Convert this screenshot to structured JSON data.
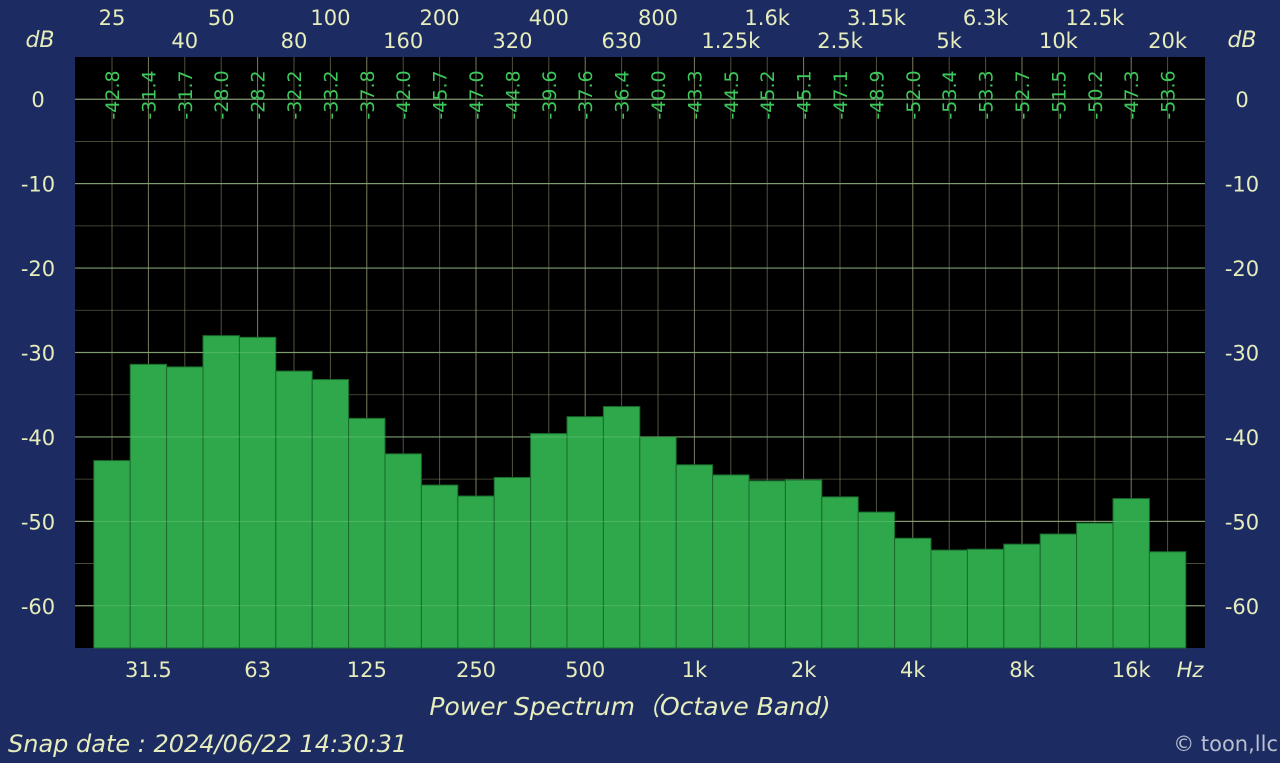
{
  "chart_data": {
    "type": "bar",
    "title": "Power Spectrum（Octave Band)",
    "xlabel": "Hz",
    "ylabel": "dB",
    "ylim": [
      -65,
      5
    ],
    "yticks": [
      0,
      -10,
      -20,
      -30,
      -40,
      -50,
      -60
    ],
    "grid": true,
    "categories": [
      "25",
      "31.5",
      "40",
      "50",
      "63",
      "80",
      "100",
      "125",
      "160",
      "200",
      "250",
      "320",
      "400",
      "500",
      "630",
      "800",
      "1k",
      "1.25k",
      "1.6k",
      "2k",
      "2.5k",
      "3.15k",
      "4k",
      "5k",
      "6.3k",
      "8k",
      "10k",
      "12.5k",
      "16k",
      "20k"
    ],
    "values": [
      -42.8,
      -31.4,
      -31.7,
      -28.0,
      -28.2,
      -32.2,
      -33.2,
      -37.8,
      -42.0,
      -45.7,
      -47.0,
      -44.8,
      -39.6,
      -37.6,
      -36.4,
      -40.0,
      -43.3,
      -44.5,
      -45.2,
      -45.1,
      -47.1,
      -48.9,
      -52.0,
      -53.4,
      -53.3,
      -52.7,
      -51.5,
      -50.2,
      -47.3,
      -53.6
    ],
    "data_labels": [
      "-42.8",
      "-31.4",
      "-31.7",
      "-28.0",
      "-28.2",
      "-32.2",
      "-33.2",
      "-37.8",
      "-42.0",
      "-45.7",
      "-47.0",
      "-44.8",
      "-39.6",
      "-37.6",
      "-36.4",
      "-40.0",
      "-43.3",
      "-44.5",
      "-45.2",
      "-45.1",
      "-47.1",
      "-48.9",
      "-52.0",
      "-53.4",
      "-53.3",
      "-52.7",
      "-51.5",
      "-50.2",
      "-47.3",
      "-53.6"
    ],
    "top_tick_labels_row1": [
      {
        "band": 0,
        "text": "25"
      },
      {
        "band": 3,
        "text": "50"
      },
      {
        "band": 6,
        "text": "100"
      },
      {
        "band": 9,
        "text": "200"
      },
      {
        "band": 12,
        "text": "400"
      },
      {
        "band": 15,
        "text": "800"
      },
      {
        "band": 18,
        "text": "1.6k"
      },
      {
        "band": 21,
        "text": "3.15k"
      },
      {
        "band": 24,
        "text": "6.3k"
      },
      {
        "band": 27,
        "text": "12.5k"
      }
    ],
    "top_tick_labels_row2": [
      {
        "band": 2,
        "text": "40"
      },
      {
        "band": 5,
        "text": "80"
      },
      {
        "band": 8,
        "text": "160"
      },
      {
        "band": 11,
        "text": "320"
      },
      {
        "band": 14,
        "text": "630"
      },
      {
        "band": 17,
        "text": "1.25k"
      },
      {
        "band": 20,
        "text": "2.5k"
      },
      {
        "band": 23,
        "text": "5k"
      },
      {
        "band": 26,
        "text": "10k"
      },
      {
        "band": 29,
        "text": "20k"
      }
    ],
    "bottom_tick_labels": [
      {
        "band": 1,
        "text": "31.5"
      },
      {
        "band": 4,
        "text": "63"
      },
      {
        "band": 7,
        "text": "125"
      },
      {
        "band": 10,
        "text": "250"
      },
      {
        "band": 13,
        "text": "500"
      },
      {
        "band": 16,
        "text": "1k"
      },
      {
        "band": 19,
        "text": "2k"
      },
      {
        "band": 22,
        "text": "4k"
      },
      {
        "band": 25,
        "text": "8k"
      },
      {
        "band": 28,
        "text": "16k"
      }
    ],
    "colors": {
      "background": "#1c2c62",
      "plot": "#000000",
      "bar": "#2ea84a",
      "bar_edge": "#1a6a2c",
      "data_label": "#3cc85a",
      "text": "#e6ecbc",
      "grid": "#8a8a6a"
    }
  },
  "footer": {
    "snap_date": "Snap date : 2024/06/22 14:30:31",
    "copyright": "© toon,llc"
  }
}
